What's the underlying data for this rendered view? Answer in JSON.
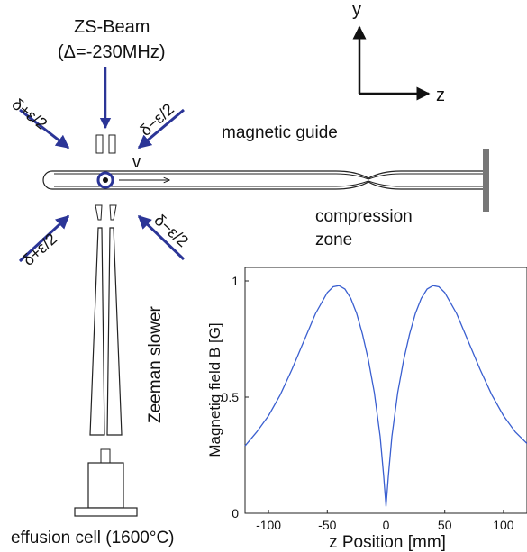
{
  "diagram": {
    "zs_beam_label": "ZS-Beam",
    "zs_beam_detuning": "(Δ=-230MHz)",
    "beam_upper_left": "δ+ε/2",
    "beam_upper_right": "δ−ε/2",
    "beam_lower_left": "δ+ε/2",
    "beam_lower_right": "δ−ε/2",
    "velocity_label": "v",
    "magnetic_guide_label": "magnetic guide",
    "compression_label_line1": "compression",
    "compression_label_line2": "zone",
    "zeeman_slower_label": "Zeeman slower",
    "effusion_cell_label": "effusion cell (1600°C)",
    "axis_y_label": "y",
    "axis_z_label": "z",
    "beam_color": "#2b3597",
    "outline_color": "#222222"
  },
  "chart_data": {
    "type": "line",
    "xlabel": "z Position [mm]",
    "ylabel": "Magnetig field B [G]",
    "xlim": [
      -120,
      120
    ],
    "ylim": [
      0,
      1
    ],
    "xticks": [
      -100,
      -50,
      0,
      50,
      100
    ],
    "yticks": [
      0,
      0.5,
      1
    ],
    "ytick_labels": [
      "0",
      "0.5",
      "1"
    ],
    "grid": false,
    "series": [
      {
        "color": "#3a5fd0",
        "x": [
          -120,
          -110,
          -100,
          -90,
          -80,
          -70,
          -60,
          -50,
          -45,
          -40,
          -35,
          -30,
          -25,
          -20,
          -15,
          -10,
          -5,
          -2,
          0,
          2,
          5,
          10,
          15,
          20,
          25,
          30,
          35,
          40,
          45,
          50,
          60,
          70,
          80,
          90,
          100,
          110,
          120
        ],
        "y": [
          0.29,
          0.35,
          0.42,
          0.51,
          0.62,
          0.74,
          0.86,
          0.95,
          0.975,
          0.98,
          0.965,
          0.925,
          0.86,
          0.77,
          0.66,
          0.52,
          0.33,
          0.16,
          0.03,
          0.16,
          0.33,
          0.52,
          0.66,
          0.77,
          0.86,
          0.925,
          0.965,
          0.98,
          0.975,
          0.95,
          0.86,
          0.74,
          0.62,
          0.51,
          0.42,
          0.35,
          0.3
        ]
      }
    ]
  }
}
